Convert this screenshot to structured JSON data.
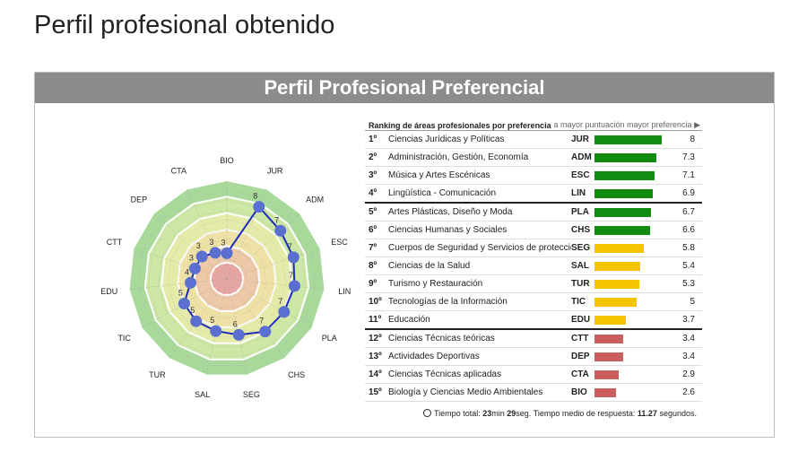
{
  "page": {
    "title": "Perfil profesional obtenido"
  },
  "panel": {
    "title": "Perfil Profesional Preferencial"
  },
  "ranking": {
    "title": "Ranking de áreas profesionales por preferencia",
    "hint": "a mayor puntuación mayor preferencia ▶",
    "rows": [
      {
        "pos": "1º",
        "name": "Ciencias Jurídicas y Políticas",
        "code": "JUR",
        "value": "8",
        "num": 8,
        "color": "#118c11"
      },
      {
        "pos": "2º",
        "name": "Administración, Gestión, Economía",
        "code": "ADM",
        "value": "7.3",
        "num": 7.3,
        "color": "#118c11"
      },
      {
        "pos": "3º",
        "name": "Música y Artes Escénicas",
        "code": "ESC",
        "value": "7.1",
        "num": 7.1,
        "color": "#118c11"
      },
      {
        "pos": "4º",
        "name": "Lingüística - Comunicación",
        "code": "LIN",
        "value": "6.9",
        "num": 6.9,
        "color": "#118c11"
      },
      {
        "pos": "5º",
        "name": "Artes Plásticas, Diseño y Moda",
        "code": "PLA",
        "value": "6.7",
        "num": 6.7,
        "color": "#118c11"
      },
      {
        "pos": "6º",
        "name": "Ciencias Humanas y Sociales",
        "code": "CHS",
        "value": "6.6",
        "num": 6.6,
        "color": "#118c11"
      },
      {
        "pos": "7º",
        "name": "Cuerpos de Seguridad y Servicios de protección",
        "code": "SEG",
        "value": "5.8",
        "num": 5.8,
        "color": "#f5c400"
      },
      {
        "pos": "8º",
        "name": "Ciencias de la Salud",
        "code": "SAL",
        "value": "5.4",
        "num": 5.4,
        "color": "#f5c400"
      },
      {
        "pos": "9º",
        "name": "Turismo y Restauración",
        "code": "TUR",
        "value": "5.3",
        "num": 5.3,
        "color": "#f5c400"
      },
      {
        "pos": "10º",
        "name": "Tecnologías de la Información",
        "code": "TIC",
        "value": "5",
        "num": 5,
        "color": "#f5c400"
      },
      {
        "pos": "11º",
        "name": "Educación",
        "code": "EDU",
        "value": "3.7",
        "num": 3.7,
        "color": "#f5c400"
      },
      {
        "pos": "12º",
        "name": "Ciencias Técnicas teóricas",
        "code": "CTT",
        "value": "3.4",
        "num": 3.4,
        "color": "#c95e5e"
      },
      {
        "pos": "13º",
        "name": "Actividades Deportivas",
        "code": "DEP",
        "value": "3.4",
        "num": 3.4,
        "color": "#c95e5e"
      },
      {
        "pos": "14º",
        "name": "Ciencias Técnicas aplicadas",
        "code": "CTA",
        "value": "2.9",
        "num": 2.9,
        "color": "#c95e5e"
      },
      {
        "pos": "15º",
        "name": "Biología y Ciencias Medio Ambientales",
        "code": "BIO",
        "value": "2.6",
        "num": 2.6,
        "color": "#c95e5e"
      }
    ],
    "separators_after": [
      4,
      11
    ],
    "bar_max": 10
  },
  "footer": {
    "label": "Tiempo total:",
    "total_min": "23",
    "min_unit": "min",
    "total_sec": "29",
    "sec_unit": "seg.",
    "avg_label": "Tiempo medio de respuesta:",
    "avg_value": "11.27",
    "avg_unit": "segundos."
  },
  "chart_data": {
    "type": "radar",
    "axes": [
      "BIO",
      "JUR",
      "ADM",
      "ESC",
      "LIN",
      "PLA",
      "CHS",
      "SEG",
      "SAL",
      "TUR",
      "TIC",
      "EDU",
      "CTT",
      "DEP",
      "CTA"
    ],
    "values": [
      2.6,
      8,
      7.3,
      7.1,
      6.9,
      6.7,
      6.6,
      5.8,
      5.4,
      5.3,
      5,
      3.7,
      3.4,
      3.4,
      2.9
    ],
    "point_labels": [
      "3",
      "8",
      "7",
      "7",
      "7",
      "7",
      "7",
      "6",
      "5",
      "5",
      "5",
      "4",
      "3",
      "3",
      "3"
    ],
    "range": [
      0,
      10
    ],
    "band_colors": [
      "#e8a6a2",
      "#edc9a8",
      "#eee1a6",
      "#e4eaa8",
      "#cde7a5",
      "#a9d99a"
    ],
    "line_color": "#1f2bbd",
    "point_color": "#5a6fd0"
  }
}
